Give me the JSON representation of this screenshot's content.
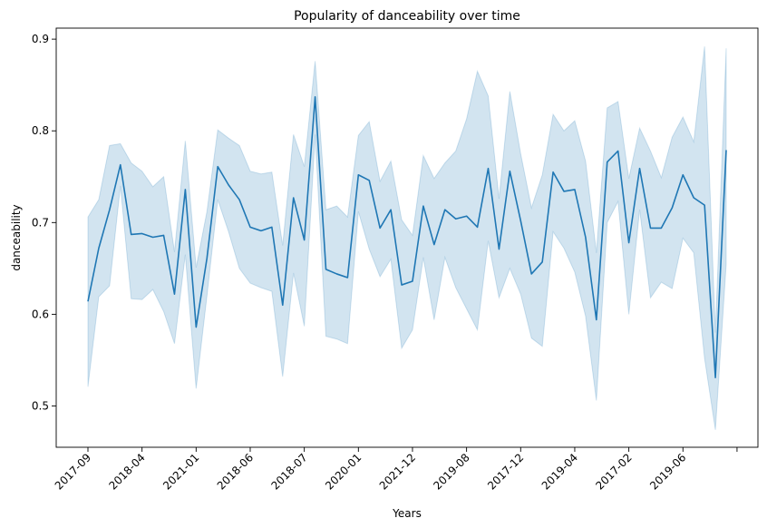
{
  "chart_data": {
    "type": "line",
    "title": "Popularity of danceability over time",
    "xlabel": "Years",
    "ylabel": "danceability",
    "ylim": [
      0.455,
      0.912
    ],
    "yticks": [
      0.5,
      0.6,
      0.7,
      0.8,
      0.9
    ],
    "ytick_labels": [
      "0.5",
      "0.6",
      "0.7",
      "0.8",
      "0.9"
    ],
    "xtick_labels": [
      "2017-09",
      "2018-04",
      "2021-01",
      "2018-06",
      "2018-07",
      "2020-01",
      "2021-12",
      "2019-08",
      "2017-12",
      "2019-04",
      "2017-02",
      "2019-06"
    ],
    "grid": false,
    "legend": "none",
    "series": [
      {
        "color": "#1f77b4",
        "band_color": "#1f77b4",
        "values": [
          0.614,
          0.672,
          0.714,
          0.763,
          0.687,
          0.688,
          0.684,
          0.686,
          0.622,
          0.736,
          0.586,
          0.661,
          0.761,
          0.741,
          0.725,
          0.695,
          0.691,
          0.695,
          0.61,
          0.727,
          0.681,
          0.837,
          0.649,
          0.644,
          0.64,
          0.752,
          0.746,
          0.694,
          0.714,
          0.632,
          0.636,
          0.718,
          0.676,
          0.714,
          0.704,
          0.707,
          0.695,
          0.759,
          0.671,
          0.756,
          0.702,
          0.644,
          0.657,
          0.755,
          0.734,
          0.736,
          0.684,
          0.594,
          0.766,
          0.778,
          0.678,
          0.759,
          0.694,
          0.694,
          0.716,
          0.752,
          0.727,
          0.719,
          0.531,
          0.779
        ],
        "upper": [
          0.706,
          0.725,
          0.784,
          0.786,
          0.765,
          0.756,
          0.739,
          0.75,
          0.668,
          0.789,
          0.651,
          0.712,
          0.801,
          0.792,
          0.784,
          0.756,
          0.753,
          0.755,
          0.675,
          0.796,
          0.761,
          0.876,
          0.714,
          0.718,
          0.706,
          0.795,
          0.81,
          0.745,
          0.767,
          0.703,
          0.686,
          0.773,
          0.748,
          0.765,
          0.778,
          0.813,
          0.865,
          0.838,
          0.726,
          0.843,
          0.775,
          0.716,
          0.752,
          0.818,
          0.8,
          0.811,
          0.767,
          0.667,
          0.825,
          0.832,
          0.748,
          0.803,
          0.778,
          0.749,
          0.793,
          0.815,
          0.788,
          0.892,
          0.58,
          0.89
        ],
        "lower": [
          0.521,
          0.619,
          0.631,
          0.74,
          0.617,
          0.616,
          0.627,
          0.603,
          0.568,
          0.665,
          0.519,
          0.62,
          0.725,
          0.69,
          0.65,
          0.634,
          0.629,
          0.625,
          0.532,
          0.645,
          0.587,
          0.796,
          0.576,
          0.573,
          0.568,
          0.712,
          0.671,
          0.641,
          0.66,
          0.563,
          0.583,
          0.662,
          0.594,
          0.662,
          0.629,
          0.606,
          0.583,
          0.68,
          0.618,
          0.65,
          0.622,
          0.574,
          0.565,
          0.69,
          0.672,
          0.646,
          0.598,
          0.506,
          0.7,
          0.723,
          0.6,
          0.714,
          0.618,
          0.635,
          0.628,
          0.683,
          0.667,
          0.552,
          0.474,
          0.655
        ]
      }
    ]
  }
}
